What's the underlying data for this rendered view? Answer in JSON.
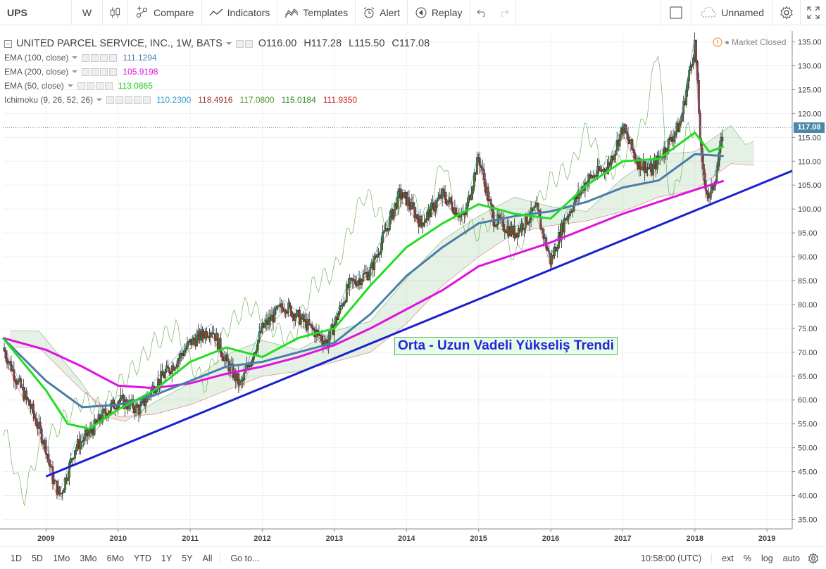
{
  "toolbar": {
    "symbol": "UPS",
    "interval": "W",
    "compare": "Compare",
    "indicators": "Indicators",
    "templates": "Templates",
    "alert": "Alert",
    "replay": "Replay",
    "layout_name": "Unnamed"
  },
  "legend": {
    "title": "UNITED PARCEL SERVICE, INC., 1W, BATS",
    "open": "O116.00",
    "high": "H117.28",
    "low": "L115.50",
    "close": "C117.08",
    "ema100_label": "EMA (100, close)",
    "ema100_value": "111.1294",
    "ema200_label": "EMA (200, close)",
    "ema200_value": "105.9198",
    "ema50_label": "EMA (50, close)",
    "ema50_value": "113.0865",
    "ichimoku_label": "Ichimoku (9, 26, 52, 26)",
    "ichimoku_values": [
      "110.2300",
      "118.4916",
      "117.0800",
      "115.0184",
      "111.9350"
    ]
  },
  "market_status": "Market Closed",
  "annotation": "Orta - Uzun Vadeli Yükseliş Trendi",
  "last_price_tag": "117.08",
  "bottom": {
    "ranges": [
      "1D",
      "5D",
      "1Mo",
      "3Mo",
      "6Mo",
      "YTD",
      "1Y",
      "5Y",
      "All"
    ],
    "goto": "Go to...",
    "time": "10:58:00 (UTC)",
    "ext": "ext",
    "percent": "%",
    "log": "log",
    "auto": "auto"
  },
  "colors": {
    "ema100": "#4a7ea8",
    "ema200": "#e011e0",
    "ema50": "#22dd22",
    "trendline": "#1a22cc",
    "candle_up": "#3a8a3a",
    "candle_down": "#a83232",
    "ichi_tenkan": "#3399cc",
    "ichi_kijun": "#993333",
    "ichi_lagging": "#4a9a2a",
    "ichi_spanA": "#2e8b2e",
    "ichi_spanB": "#cc2222"
  },
  "chart_data": {
    "type": "line",
    "title": "UNITED PARCEL SERVICE, INC., 1W, BATS",
    "x_ticks": [
      "2009",
      "2010",
      "2011",
      "2012",
      "2013",
      "2014",
      "2015",
      "2016",
      "2017",
      "2018",
      "2019"
    ],
    "y_ticks": [
      35,
      40,
      45,
      50,
      55,
      60,
      65,
      70,
      75,
      80,
      85,
      90,
      95,
      100,
      105,
      110,
      115,
      120,
      125,
      130,
      135
    ],
    "ylim": [
      33,
      137
    ],
    "xlim": [
      2008.4,
      2019.35
    ],
    "series": [
      {
        "name": "EMA (200, close)",
        "x": [
          2008.4,
          2009.0,
          2009.5,
          2010.0,
          2010.5,
          2011.0,
          2011.5,
          2012.0,
          2012.5,
          2013.0,
          2013.5,
          2014.0,
          2014.5,
          2015.0,
          2015.5,
          2016.0,
          2016.5,
          2017.0,
          2017.5,
          2018.0,
          2018.4
        ],
        "values": [
          73,
          70.5,
          67,
          63,
          62.5,
          63.5,
          65.5,
          67,
          69,
          71.5,
          75,
          79,
          83,
          88,
          90.5,
          93,
          96,
          99,
          101.5,
          104,
          105.9
        ]
      },
      {
        "name": "EMA (100, close)",
        "x": [
          2008.4,
          2009.0,
          2009.5,
          2010.0,
          2010.5,
          2011.0,
          2011.5,
          2012.0,
          2012.5,
          2013.0,
          2013.5,
          2014.0,
          2014.5,
          2015.0,
          2015.5,
          2016.0,
          2016.5,
          2017.0,
          2017.5,
          2018.0,
          2018.4
        ],
        "values": [
          73,
          64,
          58.5,
          59,
          61,
          64,
          67,
          68,
          70,
          72,
          78,
          86,
          92,
          97,
          98.5,
          99.5,
          101.5,
          104.5,
          106,
          111.5,
          111.1
        ]
      },
      {
        "name": "EMA (50, close)",
        "x": [
          2008.4,
          2009.0,
          2009.3,
          2009.6,
          2010.0,
          2010.5,
          2011.0,
          2011.5,
          2012.0,
          2012.5,
          2013.0,
          2013.5,
          2014.0,
          2014.5,
          2015.0,
          2015.5,
          2016.0,
          2016.5,
          2017.0,
          2017.5,
          2018.0,
          2018.2,
          2018.4
        ],
        "values": [
          73,
          62,
          55,
          54,
          58,
          62,
          68,
          71,
          69,
          73,
          75,
          84,
          92,
          97,
          101,
          99,
          98,
          105,
          110,
          110.5,
          116,
          112,
          113.1
        ]
      },
      {
        "name": "Price (close)",
        "x": [
          2008.4,
          2008.6,
          2008.8,
          2009.0,
          2009.1,
          2009.2,
          2009.4,
          2009.6,
          2009.8,
          2010.0,
          2010.3,
          2010.5,
          2010.8,
          2011.0,
          2011.3,
          2011.5,
          2011.7,
          2012.0,
          2012.3,
          2012.6,
          2012.9,
          2013.2,
          2013.5,
          2013.7,
          2013.9,
          2014.0,
          2014.2,
          2014.5,
          2014.8,
          2015.0,
          2015.2,
          2015.5,
          2015.8,
          2016.0,
          2016.2,
          2016.5,
          2016.8,
          2017.0,
          2017.2,
          2017.4,
          2017.6,
          2017.8,
          2018.0,
          2018.1,
          2018.2,
          2018.3,
          2018.4
        ],
        "values": [
          71,
          64,
          58,
          50,
          43,
          40,
          50,
          53,
          57,
          60,
          58,
          63,
          68,
          72,
          75,
          68,
          63,
          75,
          80,
          76,
          72,
          84,
          87,
          95,
          103,
          102,
          97,
          103,
          98,
          111,
          98,
          95,
          100,
          89,
          98,
          106,
          109,
          117,
          110,
          108,
          113,
          118,
          135,
          108,
          102,
          108,
          117
        ]
      }
    ],
    "trendline": {
      "x": [
        2009.0,
        2019.35
      ],
      "values": [
        44,
        108
      ]
    }
  }
}
